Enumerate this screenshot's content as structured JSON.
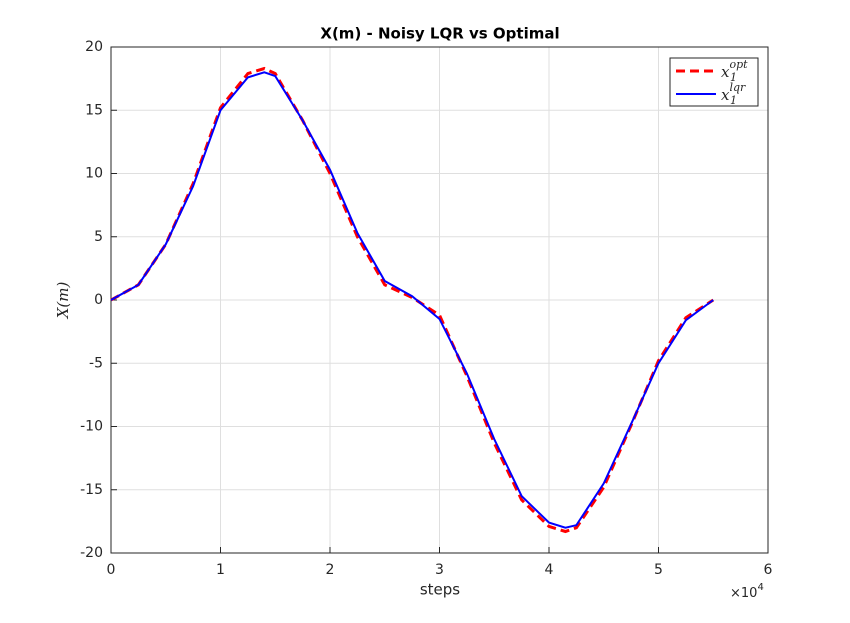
{
  "chart_data": {
    "type": "line",
    "title": "X(m) - Noisy LQR vs Optimal",
    "xlabel": "steps",
    "ylabel": "X(m)",
    "x_multiplier": "×10",
    "x_multiplier_exponent": "4",
    "x": [
      0,
      2500,
      5000,
      7500,
      10000,
      12500,
      14000,
      15000,
      17500,
      20000,
      22500,
      25000,
      27500,
      30000,
      32500,
      35000,
      37500,
      40000,
      41500,
      42500,
      45000,
      47500,
      50000,
      52500,
      55000
    ],
    "series": [
      {
        "name": "x",
        "subscript": "1",
        "superscript": "opt",
        "color": "#ff0000",
        "dash": true,
        "values": [
          0,
          1.2,
          4.4,
          9.2,
          15.2,
          17.9,
          18.3,
          17.9,
          14.2,
          10,
          5,
          1.2,
          0.2,
          -1.2,
          -6,
          -11.3,
          -15.8,
          -17.9,
          -18.3,
          -18,
          -14.8,
          -9.9,
          -4.8,
          -1.4,
          0
        ]
      },
      {
        "name": "x",
        "subscript": "1",
        "superscript": "lqr",
        "color": "#0000ff",
        "dash": false,
        "values": [
          0,
          1.2,
          4.4,
          9,
          15,
          17.6,
          18,
          17.7,
          14.2,
          10.3,
          5.3,
          1.5,
          0.3,
          -1.5,
          -5.8,
          -11,
          -15.5,
          -17.6,
          -18,
          -17.8,
          -14.5,
          -9.8,
          -5,
          -1.6,
          0
        ]
      }
    ],
    "xlim": [
      0,
      60000
    ],
    "xticks": [
      {
        "value": 0,
        "label": "0"
      },
      {
        "value": 10000,
        "label": "1"
      },
      {
        "value": 20000,
        "label": "2"
      },
      {
        "value": 30000,
        "label": "3"
      },
      {
        "value": 40000,
        "label": "4"
      },
      {
        "value": 50000,
        "label": "5"
      },
      {
        "value": 60000,
        "label": "6"
      }
    ],
    "ylim": [
      -20,
      20
    ],
    "yticks": [
      -20,
      -15,
      -10,
      -5,
      0,
      5,
      10,
      15,
      20
    ],
    "grid": true,
    "legend": "top-right"
  }
}
